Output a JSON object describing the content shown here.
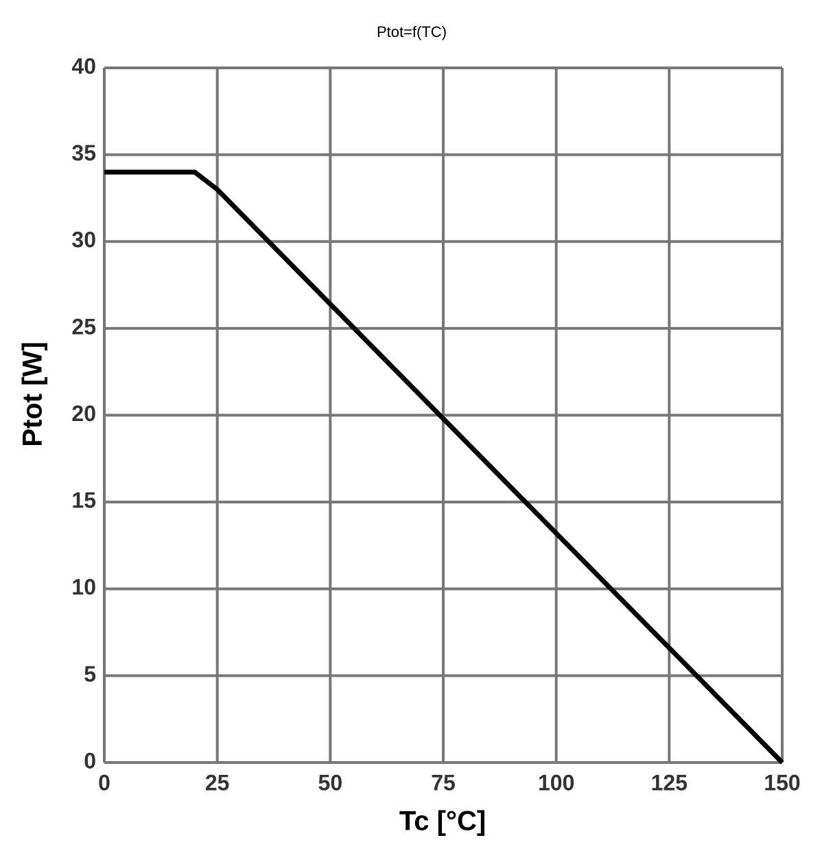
{
  "chart_data": {
    "type": "line",
    "title": "Ptot=f(TC)",
    "x_label": "Tc [°C]",
    "y_label": "Ptot [W]",
    "x": [
      0,
      20,
      25,
      150
    ],
    "values": [
      34,
      34,
      33,
      0
    ],
    "color": "#000000",
    "xlim": [
      0,
      150
    ],
    "xticks": [
      0,
      25,
      50,
      75,
      100,
      125,
      150
    ],
    "ylim": [
      0,
      40
    ],
    "yticks": [
      0,
      5,
      10,
      15,
      20,
      25,
      30,
      35,
      40
    ],
    "grid": true
  }
}
